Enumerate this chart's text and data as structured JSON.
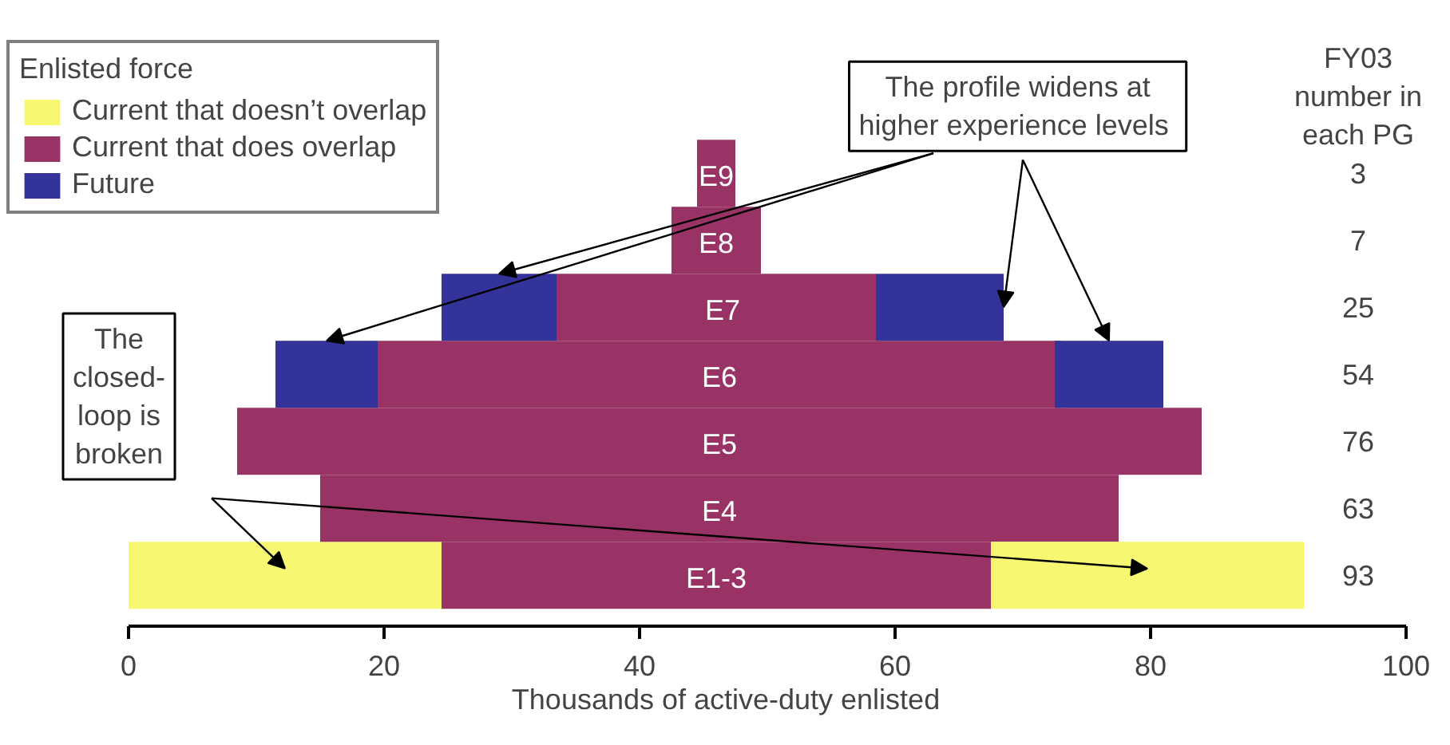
{
  "chart_data": {
    "type": "bar",
    "orientation": "horizontal",
    "xlabel": "Thousands of active-duty enlisted",
    "legend_title": "Enlisted force",
    "legend": "top left",
    "grid": false,
    "categories": [
      "E9",
      "E8",
      "E7",
      "E6",
      "E5",
      "E4",
      "E1-3"
    ],
    "xlim": [
      0,
      100
    ],
    "xticks": [
      0,
      20,
      40,
      60,
      80,
      100
    ],
    "series": [
      {
        "name": "Current that doesn’t overlap",
        "color": "#f7f772",
        "base": [
          null,
          null,
          null,
          null,
          null,
          null,
          0
        ],
        "values": [
          null,
          null,
          null,
          null,
          null,
          null,
          24.5
        ]
      },
      {
        "name": "Current that does overlap",
        "color": "#993366",
        "base": [
          44.5,
          42.5,
          33.5,
          19.5,
          8.5,
          15,
          24.5
        ],
        "values": [
          3,
          7,
          25,
          53.5,
          75.5,
          62.5,
          43
        ]
      },
      {
        "name": "Future",
        "color": "#333399",
        "base": [
          null,
          null,
          24.5,
          11.5,
          null,
          null,
          null
        ],
        "values": [
          null,
          null,
          9,
          8,
          null,
          null,
          null
        ]
      },
      {
        "color": "#f7f772",
        "base": [
          null,
          null,
          null,
          null,
          null,
          null,
          67.5
        ],
        "values": [
          null,
          null,
          null,
          null,
          null,
          null,
          24.5
        ]
      },
      {
        "color": "#333399",
        "base": [
          null,
          null,
          58.5,
          72.5,
          null,
          null,
          null
        ],
        "values": [
          null,
          null,
          10,
          8.5,
          null,
          null,
          null
        ]
      }
    ],
    "annotations": [
      {
        "text": "The profile widens at higher  experience levels",
        "x": 68.5,
        "y": "E7"
      },
      "The closed-loop is broken",
      "FY03 number in each PG",
      "3",
      "7",
      "25",
      "54",
      "76",
      "63",
      "93"
    ]
  }
}
